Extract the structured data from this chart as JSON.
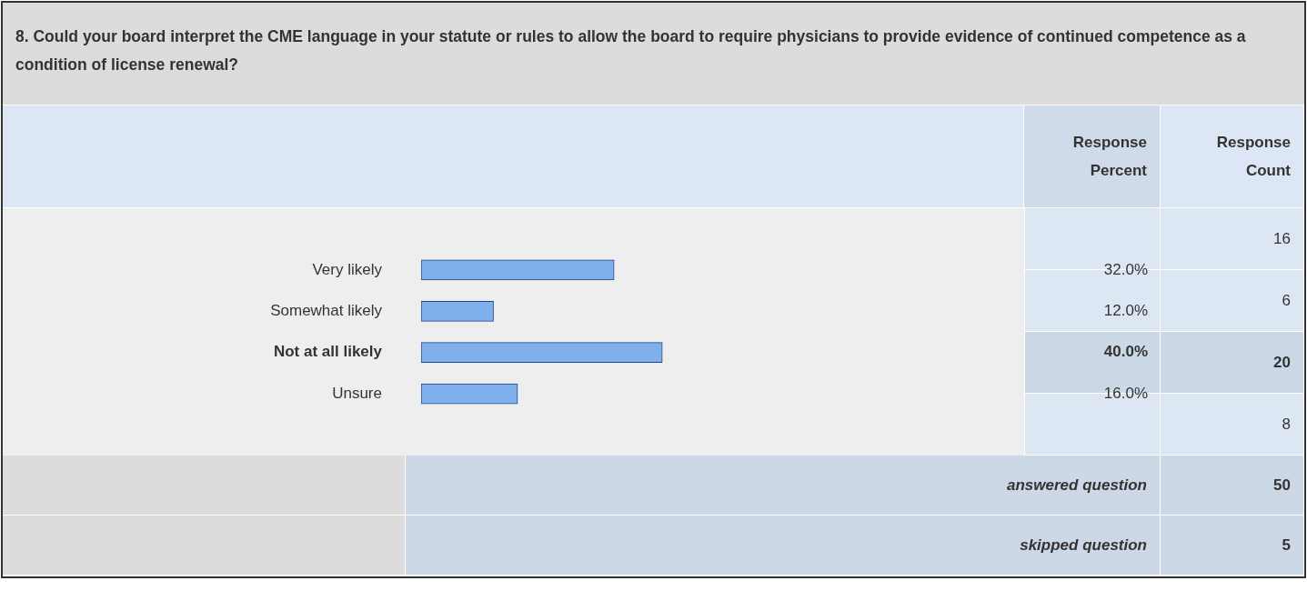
{
  "chart_data": {
    "type": "bar",
    "orientation": "horizontal",
    "title": "8. Could your board interpret the CME language in your statute or rules to allow the board to require physicians to provide evidence of continued competence as a condition of license renewal?",
    "categories": [
      "Very likely",
      "Somewhat likely",
      "Not at all likely",
      "Unsure"
    ],
    "values": [
      32,
      12,
      40,
      16
    ],
    "value_labels": [
      "32.0%",
      "12.0%",
      "40.0%",
      "16.0%"
    ],
    "color": "#7fb0ec",
    "xlim": [
      0,
      100
    ],
    "tick_labels": "y",
    "grid": false,
    "legend": false,
    "annotations": [
      "Response Percent",
      "Response Count",
      "16",
      "6",
      "20",
      "8",
      "answered question",
      "50",
      "skipped question",
      "5"
    ]
  }
}
